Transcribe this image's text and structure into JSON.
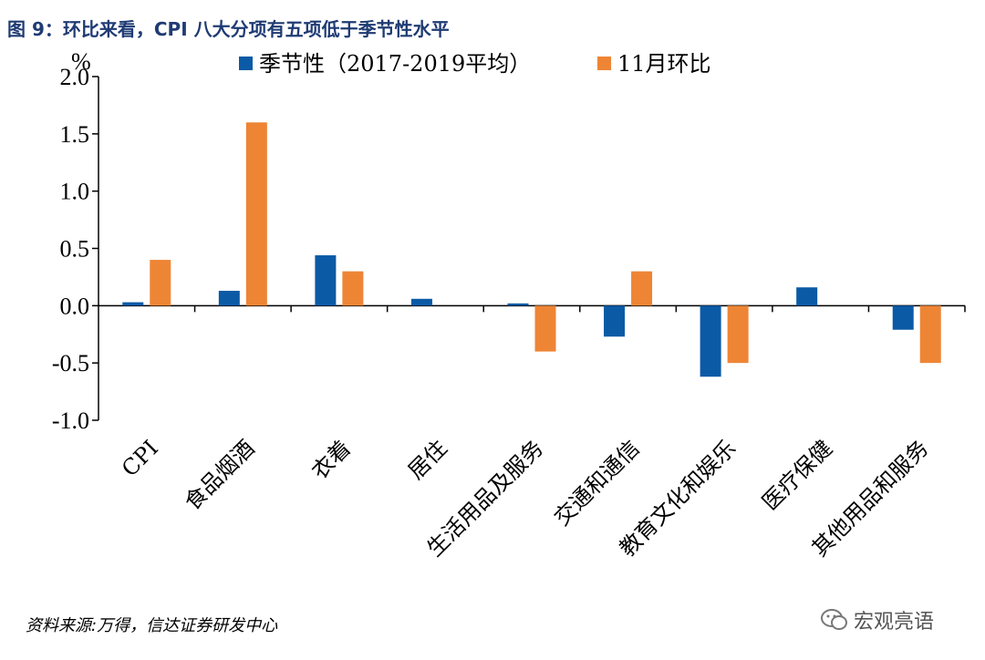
{
  "figure_title": "图 9：环比来看，CPI 八大分项有五项低于季节性水平",
  "source": "资料来源:万得，信达证券研发中心",
  "watermark": "宏观亮语",
  "colors": {
    "seasonal": "#0b5aa6",
    "monthly": "#ee8535",
    "title": "#1f3b73"
  },
  "chart_data": {
    "type": "bar",
    "title": "图 9：环比来看，CPI 八大分项有五项低于季节性水平",
    "ylabel": "",
    "unit": "%",
    "ylim": [
      -1.0,
      2.0
    ],
    "yticks": [
      "2.0",
      "1.5",
      "1.0",
      "0.5",
      "0.0",
      "-0.5",
      "-1.0"
    ],
    "legend_position": "top",
    "categories": [
      "CPI",
      "食品烟酒",
      "衣着",
      "居住",
      "生活用品及服务",
      "交通和通信",
      "教育文化和娱乐",
      "医疗保健",
      "其他用品和服务"
    ],
    "series": [
      {
        "name": "季节性（2017-2019平均）",
        "values": [
          0.03,
          0.13,
          0.44,
          0.06,
          0.02,
          -0.27,
          -0.62,
          0.16,
          -0.21
        ]
      },
      {
        "name": "11月环比",
        "values": [
          0.4,
          1.6,
          0.3,
          0.0,
          -0.4,
          0.3,
          -0.5,
          0.0,
          -0.5
        ]
      }
    ]
  }
}
